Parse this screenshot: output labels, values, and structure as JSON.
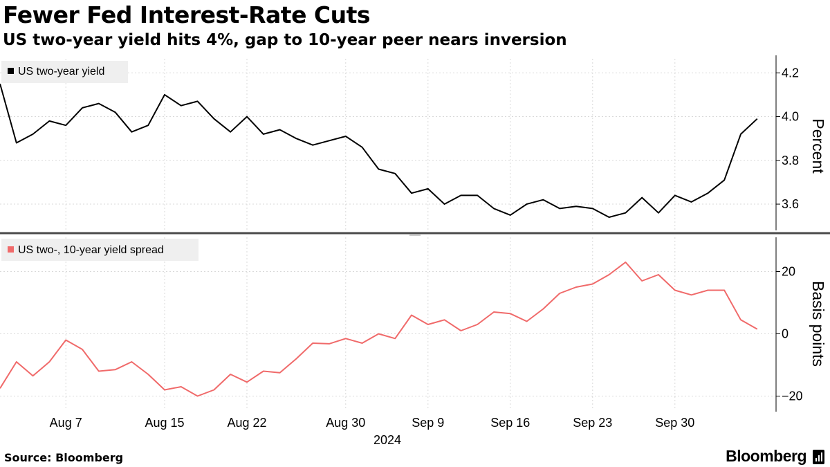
{
  "header": {
    "title": "Fewer Fed Interest-Rate Cuts",
    "subtitle": "US two-year yield hits 4%, gap to 10-year peer nears inversion"
  },
  "footer": {
    "source": "Source: Bloomberg",
    "logo": "Bloomberg"
  },
  "colors": {
    "yield": "#000000",
    "spread": "#f06a6a",
    "grid": "#d9d9d9",
    "legend_bg": "#efefef"
  },
  "chart_data": [
    {
      "type": "line",
      "legend": "US two-year yield",
      "ylabel": "Percent",
      "ylim": [
        3.48,
        4.28
      ],
      "yticks": [
        3.6,
        3.8,
        4.0,
        4.2
      ],
      "ytick_labels": [
        "3.6",
        "3.8",
        "4.0",
        "4.2"
      ],
      "legend_position": "top-left",
      "series": [
        {
          "name": "US two-year yield",
          "values": [
            4.15,
            3.88,
            3.92,
            3.98,
            3.96,
            4.04,
            4.06,
            4.02,
            3.93,
            3.96,
            4.1,
            4.05,
            4.07,
            3.99,
            3.93,
            4.0,
            3.92,
            3.94,
            3.9,
            3.87,
            3.89,
            3.91,
            3.86,
            3.76,
            3.74,
            3.65,
            3.67,
            3.6,
            3.64,
            3.64,
            3.58,
            3.55,
            3.6,
            3.62,
            3.58,
            3.59,
            3.58,
            3.54,
            3.56,
            3.63,
            3.56,
            3.64,
            3.61,
            3.65,
            3.71,
            3.92,
            3.99
          ]
        }
      ]
    },
    {
      "type": "line",
      "legend": "US two-, 10-year yield spread",
      "ylabel": "Basis points",
      "ylim": [
        -25,
        31
      ],
      "yticks": [
        -20,
        0,
        20
      ],
      "ytick_labels": [
        "−20",
        "0",
        "20"
      ],
      "legend_position": "top-left",
      "series": [
        {
          "name": "US two-, 10-year yield spread",
          "values": [
            -17.5,
            -9,
            -13.5,
            -9,
            -2,
            -5,
            -12,
            -11.5,
            -9,
            -13,
            -18,
            -17,
            -20,
            -18,
            -13,
            -15.5,
            -12,
            -12.5,
            -8,
            -3,
            -3.2,
            -1.5,
            -3,
            0,
            -1.5,
            6,
            3,
            4.5,
            1,
            3,
            7,
            6.5,
            4,
            8,
            13,
            15,
            16,
            19,
            23,
            17,
            19,
            14,
            12.5,
            14,
            14,
            4.5,
            1.5
          ]
        }
      ]
    }
  ],
  "x_axis": {
    "tick_labels": [
      "Aug 7",
      "Aug 15",
      "Aug 22",
      "Aug 30",
      "Sep 9",
      "Sep 16",
      "Sep 23",
      "Sep 30"
    ],
    "tick_indices": [
      4,
      10,
      15,
      21,
      26,
      31,
      36,
      41
    ],
    "year_label": "2024"
  }
}
